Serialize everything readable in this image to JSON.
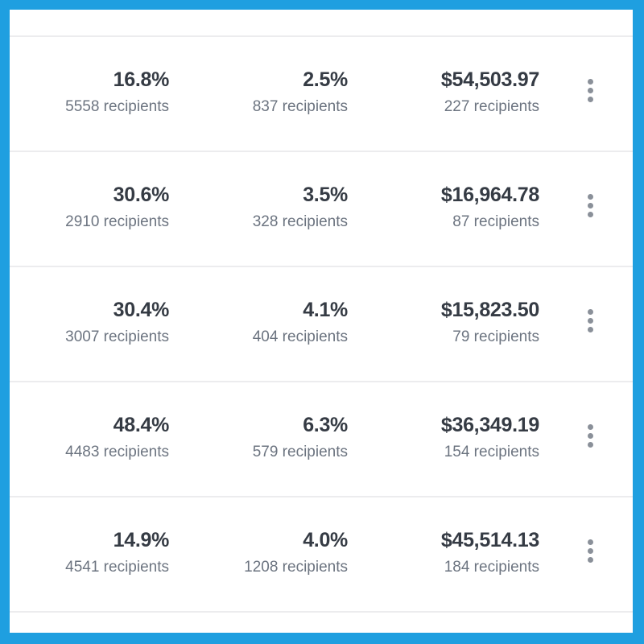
{
  "rows": [
    {
      "open_rate": "16.8%",
      "open_recipients": "5558 recipients",
      "click_rate": "2.5%",
      "click_recipients": "837 recipients",
      "revenue": "$54,503.97",
      "revenue_recipients": "227 recipients"
    },
    {
      "open_rate": "30.6%",
      "open_recipients": "2910 recipients",
      "click_rate": "3.5%",
      "click_recipients": "328 recipients",
      "revenue": "$16,964.78",
      "revenue_recipients": "87 recipients"
    },
    {
      "open_rate": "30.4%",
      "open_recipients": "3007 recipients",
      "click_rate": "4.1%",
      "click_recipients": "404 recipients",
      "revenue": "$15,823.50",
      "revenue_recipients": "79 recipients"
    },
    {
      "open_rate": "48.4%",
      "open_recipients": "4483 recipients",
      "click_rate": "6.3%",
      "click_recipients": "579 recipients",
      "revenue": "$36,349.19",
      "revenue_recipients": "154 recipients"
    },
    {
      "open_rate": "14.9%",
      "open_recipients": "4541 recipients",
      "click_rate": "4.0%",
      "click_recipients": "1208 recipients",
      "revenue": "$45,514.13",
      "revenue_recipients": "184 recipients"
    }
  ],
  "colors": {
    "frame": "#1f9fe0",
    "value": "#353b44",
    "muted": "#6c7480"
  }
}
